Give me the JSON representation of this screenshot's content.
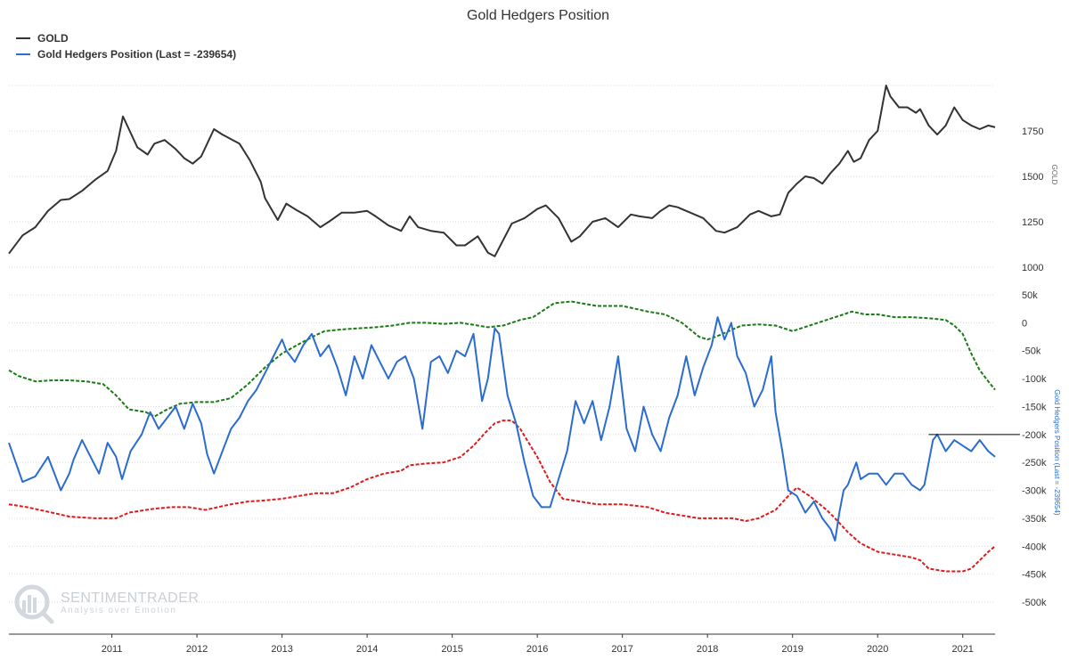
{
  "chart_data": {
    "type": "line",
    "title": "Gold Hedgers Position",
    "legend": [
      {
        "label": "GOLD",
        "color": "#333333"
      },
      {
        "label": "Gold Hedgers Position (Last = -239654)",
        "color": "#2a6ccf"
      }
    ],
    "x_ticks": [
      "2011",
      "2012",
      "2013",
      "2014",
      "2015",
      "2016",
      "2017",
      "2018",
      "2019",
      "2020",
      "2021"
    ],
    "x_range": [
      2010.29,
      2021.88
    ],
    "gold_axis": {
      "title": "GOLD",
      "ticks": [
        "1750",
        "1500",
        "1250",
        "1000"
      ],
      "tick_values": [
        1750,
        1500,
        1250,
        1000
      ],
      "range": [
        1000,
        2000
      ]
    },
    "hedgers_axis": {
      "title": "Gold Hedgers Position (Last = -239654)",
      "ticks": [
        "50k",
        "0",
        "-50k",
        "-100k",
        "-150k",
        "-200k",
        "-250k",
        "-300k",
        "-350k",
        "-400k",
        "-450k",
        "-500k"
      ],
      "tick_values": [
        50000,
        0,
        -50000,
        -100000,
        -150000,
        -200000,
        -250000,
        -300000,
        -350000,
        -400000,
        -450000,
        -500000
      ],
      "range": [
        -500000,
        50000
      ]
    },
    "reference_line": {
      "value": -200000,
      "from": 2021.1,
      "to": 2021.88
    },
    "series": [
      {
        "name": "GOLD",
        "axis": "gold",
        "color": "#333333",
        "style": "solid",
        "x": [
          2010.29,
          2010.45,
          2010.6,
          2010.75,
          2010.9,
          2011.0,
          2011.15,
          2011.3,
          2011.45,
          2011.55,
          2011.63,
          2011.7,
          2011.8,
          2011.92,
          2012.0,
          2012.12,
          2012.25,
          2012.35,
          2012.45,
          2012.55,
          2012.7,
          2012.8,
          2012.92,
          2013.0,
          2013.12,
          2013.25,
          2013.3,
          2013.45,
          2013.55,
          2013.65,
          2013.8,
          2013.95,
          2014.05,
          2014.2,
          2014.35,
          2014.5,
          2014.6,
          2014.75,
          2014.9,
          2015.0,
          2015.1,
          2015.25,
          2015.4,
          2015.55,
          2015.65,
          2015.8,
          2015.92,
          2016.0,
          2016.1,
          2016.2,
          2016.35,
          2016.5,
          2016.6,
          2016.75,
          2016.9,
          2017.0,
          2017.15,
          2017.3,
          2017.45,
          2017.6,
          2017.7,
          2017.85,
          2017.95,
          2018.05,
          2018.15,
          2018.3,
          2018.45,
          2018.6,
          2018.7,
          2018.85,
          2019.0,
          2019.1,
          2019.25,
          2019.35,
          2019.45,
          2019.55,
          2019.65,
          2019.75,
          2019.85,
          2019.95,
          2020.05,
          2020.15,
          2020.22,
          2020.3,
          2020.4,
          2020.5,
          2020.6,
          2020.65,
          2020.75,
          2020.85,
          2020.95,
          2021.0,
          2021.1,
          2021.2,
          2021.3,
          2021.4,
          2021.5,
          2021.6,
          2021.7,
          2021.8,
          2021.88
        ],
        "y": [
          1075,
          1175,
          1220,
          1310,
          1370,
          1375,
          1420,
          1480,
          1530,
          1640,
          1830,
          1760,
          1660,
          1620,
          1680,
          1700,
          1650,
          1600,
          1570,
          1610,
          1760,
          1730,
          1700,
          1680,
          1590,
          1470,
          1380,
          1260,
          1350,
          1320,
          1280,
          1220,
          1250,
          1300,
          1300,
          1310,
          1280,
          1230,
          1200,
          1280,
          1220,
          1200,
          1190,
          1120,
          1120,
          1170,
          1080,
          1060,
          1150,
          1240,
          1270,
          1320,
          1340,
          1270,
          1140,
          1170,
          1250,
          1270,
          1220,
          1290,
          1280,
          1270,
          1310,
          1340,
          1330,
          1300,
          1270,
          1200,
          1190,
          1220,
          1290,
          1310,
          1280,
          1290,
          1410,
          1460,
          1500,
          1490,
          1460,
          1520,
          1570,
          1640,
          1580,
          1600,
          1700,
          1750,
          2000,
          1940,
          1880,
          1880,
          1850,
          1870,
          1780,
          1730,
          1780,
          1880,
          1810,
          1780,
          1760,
          1780,
          1770
        ]
      },
      {
        "name": "Gold Hedgers Position (Last = -239654)",
        "axis": "hedgers",
        "color": "#2a6ccf",
        "style": "solid",
        "x": [
          2010.29,
          2010.45,
          2010.6,
          2010.75,
          2010.9,
          2011.0,
          2011.05,
          2011.15,
          2011.25,
          2011.35,
          2011.45,
          2011.55,
          2011.62,
          2011.72,
          2011.85,
          2011.95,
          2012.05,
          2012.15,
          2012.25,
          2012.35,
          2012.45,
          2012.55,
          2012.62,
          2012.7,
          2012.8,
          2012.9,
          2013.0,
          2013.1,
          2013.2,
          2013.3,
          2013.4,
          2013.5,
          2013.55,
          2013.65,
          2013.75,
          2013.85,
          2013.95,
          2014.05,
          2014.15,
          2014.25,
          2014.35,
          2014.45,
          2014.55,
          2014.65,
          2014.75,
          2014.85,
          2014.95,
          2015.05,
          2015.15,
          2015.25,
          2015.35,
          2015.45,
          2015.55,
          2015.65,
          2015.75,
          2015.85,
          2015.92,
          2016.0,
          2016.05,
          2016.15,
          2016.25,
          2016.35,
          2016.45,
          2016.55,
          2016.65,
          2016.75,
          2016.85,
          2016.95,
          2017.05,
          2017.15,
          2017.25,
          2017.35,
          2017.45,
          2017.55,
          2017.65,
          2017.75,
          2017.85,
          2017.95,
          2018.05,
          2018.15,
          2018.25,
          2018.35,
          2018.45,
          2018.55,
          2018.62,
          2018.7,
          2018.78,
          2018.85,
          2018.95,
          2019.05,
          2019.15,
          2019.25,
          2019.3,
          2019.38,
          2019.45,
          2019.55,
          2019.65,
          2019.75,
          2019.85,
          2019.95,
          2020.0,
          2020.05,
          2020.1,
          2020.15,
          2020.2,
          2020.25,
          2020.3,
          2020.4,
          2020.5,
          2020.6,
          2020.7,
          2020.8,
          2020.9,
          2021.0,
          2021.05,
          2021.1,
          2021.15,
          2021.2,
          2021.3,
          2021.4,
          2021.5,
          2021.6,
          2021.7,
          2021.8,
          2021.88
        ],
        "y": [
          -215000,
          -285000,
          -275000,
          -240000,
          -300000,
          -270000,
          -245000,
          -210000,
          -240000,
          -270000,
          -215000,
          -240000,
          -280000,
          -230000,
          -200000,
          -160000,
          -190000,
          -170000,
          -150000,
          -190000,
          -145000,
          -180000,
          -235000,
          -270000,
          -230000,
          -190000,
          -170000,
          -140000,
          -120000,
          -90000,
          -60000,
          -30000,
          -50000,
          -70000,
          -40000,
          -20000,
          -60000,
          -40000,
          -80000,
          -130000,
          -60000,
          -100000,
          -40000,
          -70000,
          -100000,
          -70000,
          -60000,
          -100000,
          -190000,
          -70000,
          -60000,
          -90000,
          -50000,
          -60000,
          -20000,
          -140000,
          -100000,
          -10000,
          -20000,
          -130000,
          -180000,
          -250000,
          -310000,
          -330000,
          -330000,
          -280000,
          -230000,
          -140000,
          -180000,
          -140000,
          -210000,
          -150000,
          -60000,
          -190000,
          -230000,
          -150000,
          -200000,
          -230000,
          -170000,
          -130000,
          -60000,
          -130000,
          -80000,
          -40000,
          10000,
          -30000,
          0,
          -60000,
          -90000,
          -150000,
          -120000,
          -60000,
          -160000,
          -230000,
          -300000,
          -310000,
          -340000,
          -320000,
          -350000,
          -370000,
          -390000,
          -340000,
          -300000,
          -290000,
          -270000,
          -250000,
          -280000,
          -270000,
          -270000,
          -290000,
          -270000,
          -270000,
          -290000,
          -300000,
          -290000,
          -250000,
          -210000,
          -200000,
          -230000,
          -210000,
          -220000,
          -230000,
          -210000,
          -230000,
          -240000
        ]
      },
      {
        "name": "",
        "axis": "hedgers",
        "color": "#1a7a14",
        "style": "dashed",
        "x": [
          2010.29,
          2010.4,
          2010.6,
          2010.8,
          2011.0,
          2011.2,
          2011.4,
          2011.55,
          2011.7,
          2011.9,
          2012.0,
          2012.15,
          2012.3,
          2012.5,
          2012.7,
          2012.9,
          2013.1,
          2013.3,
          2013.5,
          2013.7,
          2013.9,
          2014.0,
          2014.2,
          2014.4,
          2014.6,
          2014.8,
          2015.0,
          2015.2,
          2015.4,
          2015.6,
          2015.8,
          2015.92,
          2016.1,
          2016.3,
          2016.45,
          2016.6,
          2016.7,
          2016.9,
          2017.2,
          2017.5,
          2017.8,
          2018.0,
          2018.2,
          2018.4,
          2018.5,
          2018.6,
          2018.75,
          2018.9,
          2019.1,
          2019.3,
          2019.5,
          2019.7,
          2019.9,
          2020.1,
          2020.2,
          2020.35,
          2020.5,
          2020.7,
          2020.9,
          2021.1,
          2021.3,
          2021.4,
          2021.5,
          2021.6,
          2021.7,
          2021.8,
          2021.88
        ],
        "y": [
          -85000,
          -95000,
          -105000,
          -103000,
          -103000,
          -105000,
          -110000,
          -130000,
          -155000,
          -160000,
          -168000,
          -155000,
          -145000,
          -142000,
          -142000,
          -135000,
          -110000,
          -80000,
          -55000,
          -38000,
          -22000,
          -15000,
          -12000,
          -10000,
          -8000,
          -5000,
          0,
          0,
          -2000,
          0,
          -5000,
          -8000,
          -5000,
          5000,
          10000,
          25000,
          35000,
          38000,
          30000,
          30000,
          20000,
          15000,
          0,
          -25000,
          -30000,
          -25000,
          -15000,
          -5000,
          -3000,
          -5000,
          -15000,
          -5000,
          5000,
          15000,
          20000,
          15000,
          15000,
          10000,
          10000,
          8000,
          5000,
          -5000,
          -20000,
          -55000,
          -85000,
          -105000,
          -120000
        ]
      },
      {
        "name": "",
        "axis": "hedgers",
        "color": "#e01a1a",
        "style": "dashed",
        "x": [
          2010.29,
          2010.5,
          2010.8,
          2011.0,
          2011.3,
          2011.55,
          2011.7,
          2011.9,
          2012.0,
          2012.2,
          2012.4,
          2012.6,
          2012.9,
          2013.1,
          2013.3,
          2013.5,
          2013.7,
          2013.9,
          2014.1,
          2014.3,
          2014.5,
          2014.7,
          2014.9,
          2015.0,
          2015.2,
          2015.4,
          2015.6,
          2015.75,
          2015.9,
          2016.0,
          2016.1,
          2016.2,
          2016.3,
          2016.5,
          2016.65,
          2016.8,
          2017.0,
          2017.2,
          2017.5,
          2017.8,
          2018.0,
          2018.2,
          2018.4,
          2018.6,
          2018.8,
          2018.95,
          2019.1,
          2019.3,
          2019.45,
          2019.55,
          2019.7,
          2019.9,
          2020.0,
          2020.15,
          2020.3,
          2020.5,
          2020.7,
          2020.9,
          2021.0,
          2021.1,
          2021.3,
          2021.5,
          2021.6,
          2021.7,
          2021.8,
          2021.88
        ],
        "y": [
          -325000,
          -330000,
          -340000,
          -347000,
          -350000,
          -350000,
          -340000,
          -335000,
          -333000,
          -330000,
          -330000,
          -335000,
          -325000,
          -320000,
          -318000,
          -315000,
          -310000,
          -305000,
          -305000,
          -295000,
          -280000,
          -270000,
          -265000,
          -255000,
          -252000,
          -250000,
          -240000,
          -220000,
          -195000,
          -180000,
          -175000,
          -175000,
          -190000,
          -240000,
          -285000,
          -315000,
          -320000,
          -325000,
          -325000,
          -330000,
          -340000,
          -345000,
          -350000,
          -350000,
          -350000,
          -355000,
          -350000,
          -335000,
          -310000,
          -295000,
          -310000,
          -335000,
          -350000,
          -375000,
          -395000,
          -410000,
          -415000,
          -420000,
          -425000,
          -440000,
          -445000,
          -445000,
          -440000,
          -425000,
          -410000,
          -400000
        ]
      }
    ]
  },
  "watermark": {
    "name": "SENTIMENTRADER",
    "tagline": "Analysis over Emotion"
  }
}
